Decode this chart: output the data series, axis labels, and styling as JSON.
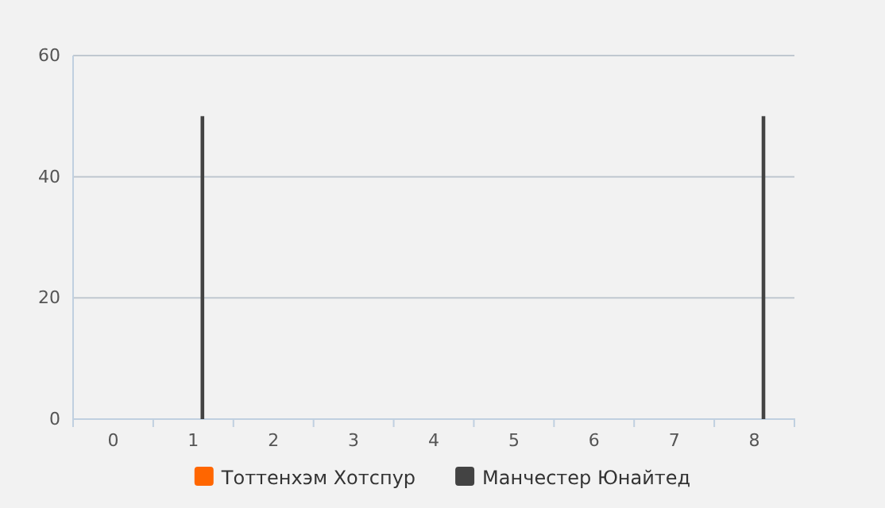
{
  "chart_data": {
    "type": "bar",
    "categories": [
      "0",
      "1",
      "2",
      "3",
      "4",
      "5",
      "6",
      "7",
      "8"
    ],
    "series": [
      {
        "name": "Тоттенхэм Хотспур",
        "color": "#ff6600",
        "values": [
          0,
          0,
          0,
          0,
          0,
          0,
          0,
          0,
          0
        ]
      },
      {
        "name": "Манчестер Юнайтед",
        "color": "#434343",
        "values": [
          0,
          50,
          0,
          0,
          0,
          0,
          0,
          0,
          50
        ]
      }
    ],
    "ylim": [
      0,
      60
    ],
    "yticks": [
      0,
      20,
      40,
      60
    ],
    "grid": "y",
    "legend": "bottom"
  }
}
